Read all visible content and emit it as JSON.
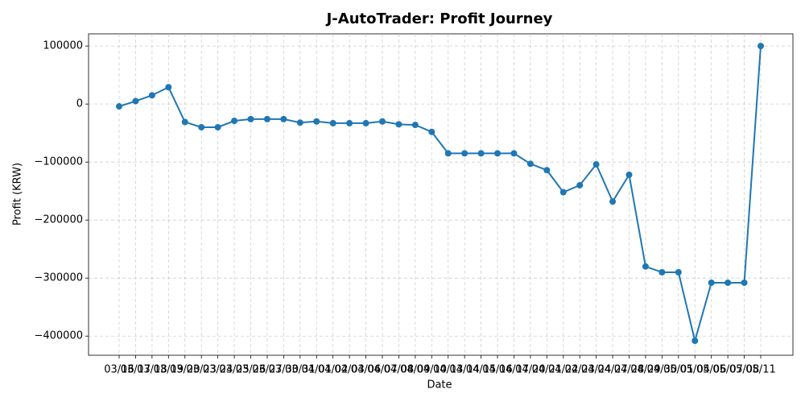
{
  "chart_data": {
    "type": "line",
    "title": "J-AutoTrader: Profit Journey",
    "x_label": "Date",
    "y_label": "Profit (KRW)",
    "categories": [
      "03/16",
      "03/17",
      "03/18",
      "03/19",
      "03/20",
      "03/23",
      "03/24",
      "03/25",
      "03/26",
      "03/27",
      "03/30",
      "03/31",
      "04/01",
      "04/02",
      "04/03",
      "04/06",
      "04/07",
      "04/08",
      "04/09",
      "04/10",
      "04/13",
      "04/14",
      "04/15",
      "04/16",
      "04/17",
      "04/20",
      "04/21",
      "04/22",
      "04/23",
      "04/24",
      "04/27",
      "04/28",
      "04/29",
      "04/30",
      "05/01",
      "05/04",
      "05/06",
      "05/07",
      "05/08",
      "05/11"
    ],
    "values": [
      -4000,
      5000,
      15000,
      29000,
      -31000,
      -40000,
      -40000,
      -29000,
      -26000,
      -26000,
      -26000,
      -32000,
      -30000,
      -33000,
      -33000,
      -33000,
      -30000,
      -35000,
      -36000,
      -48000,
      -85000,
      -85000,
      -85000,
      -85000,
      -85000,
      -103000,
      -114000,
      -152000,
      -140000,
      -104000,
      -168000,
      -122000,
      -280000,
      -290000,
      -290000,
      -408000,
      -308000,
      -308000,
      -308000,
      100000
    ],
    "color": "#1f77b4",
    "ylim": [
      -433000,
      121000
    ],
    "yticks": [
      {
        "value": -400000,
        "label": "−400000"
      },
      {
        "value": -300000,
        "label": "−300000"
      },
      {
        "value": -200000,
        "label": "−200000"
      },
      {
        "value": -100000,
        "label": "−100000"
      },
      0,
      100000
    ],
    "grid": true
  }
}
